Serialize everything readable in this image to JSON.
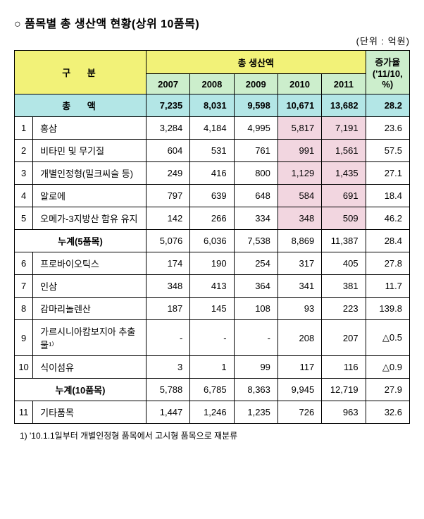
{
  "title": "○  품목별 총 생산액 현황(상위 10품목)",
  "unit": "(단위 : 억원)",
  "headers": {
    "gubun": "구  분",
    "chong_saengsanaek": "총 생산액",
    "jeunggayul": "증가율 ('11/10, %)",
    "y2007": "2007",
    "y2008": "2008",
    "y2009": "2009",
    "y2010": "2010",
    "y2011": "2011",
    "chongaek": "총  액"
  },
  "total": {
    "y2007": "7,235",
    "y2008": "8,031",
    "y2009": "9,598",
    "y2010": "10,671",
    "y2011": "13,682",
    "rate": "28.2"
  },
  "rows": [
    {
      "no": "1",
      "label": "홍삼",
      "y2007": "3,284",
      "y2008": "4,184",
      "y2009": "4,995",
      "y2010": "5,817",
      "y2011": "7,191",
      "rate": "23.6",
      "hl": true
    },
    {
      "no": "2",
      "label": "비타민 및 무기질",
      "y2007": "604",
      "y2008": "531",
      "y2009": "761",
      "y2010": "991",
      "y2011": "1,561",
      "rate": "57.5",
      "hl": true
    },
    {
      "no": "3",
      "label": "개별인정형(밀크씨슬 등)",
      "y2007": "249",
      "y2008": "416",
      "y2009": "800",
      "y2010": "1,129",
      "y2011": "1,435",
      "rate": "27.1",
      "hl": true
    },
    {
      "no": "4",
      "label": "알로에",
      "y2007": "797",
      "y2008": "639",
      "y2009": "648",
      "y2010": "584",
      "y2011": "691",
      "rate": "18.4",
      "hl": true
    },
    {
      "no": "5",
      "label": "오메가-3지방산 함유 유지",
      "y2007": "142",
      "y2008": "266",
      "y2009": "334",
      "y2010": "348",
      "y2011": "509",
      "rate": "46.2",
      "hl": true
    }
  ],
  "subtotal5": {
    "label": "누계(5품목)",
    "y2007": "5,076",
    "y2008": "6,036",
    "y2009": "7,538",
    "y2010": "8,869",
    "y2011": "11,387",
    "rate": "28.4"
  },
  "rows2": [
    {
      "no": "6",
      "label": "프로바이오틱스",
      "y2007": "174",
      "y2008": "190",
      "y2009": "254",
      "y2010": "317",
      "y2011": "405",
      "rate": "27.8"
    },
    {
      "no": "7",
      "label": "인삼",
      "y2007": "348",
      "y2008": "413",
      "y2009": "364",
      "y2010": "341",
      "y2011": "381",
      "rate": "11.7"
    },
    {
      "no": "8",
      "label": "감마리놀렌산",
      "y2007": "187",
      "y2008": "145",
      "y2009": "108",
      "y2010": "93",
      "y2011": "223",
      "rate": "139.8"
    },
    {
      "no": "9",
      "label": "가르시니아캄보지아 추출물¹⁾",
      "y2007": "-",
      "y2008": "-",
      "y2009": "-",
      "y2010": "208",
      "y2011": "207",
      "rate": "△0.5"
    },
    {
      "no": "10",
      "label": "식이섬유",
      "y2007": "3",
      "y2008": "1",
      "y2009": "99",
      "y2010": "117",
      "y2011": "116",
      "rate": "△0.9"
    }
  ],
  "subtotal10": {
    "label": "누계(10품목)",
    "y2007": "5,788",
    "y2008": "6,785",
    "y2009": "8,363",
    "y2010": "9,945",
    "y2011": "12,719",
    "rate": "27.9"
  },
  "row11": {
    "no": "11",
    "label": "기타품목",
    "y2007": "1,447",
    "y2008": "1,246",
    "y2009": "1,235",
    "y2010": "726",
    "y2011": "963",
    "rate": "32.6"
  },
  "footnote": "1)   '10.1.1일부터 개별인정형 품목에서 고시형 품목으로 재분류"
}
